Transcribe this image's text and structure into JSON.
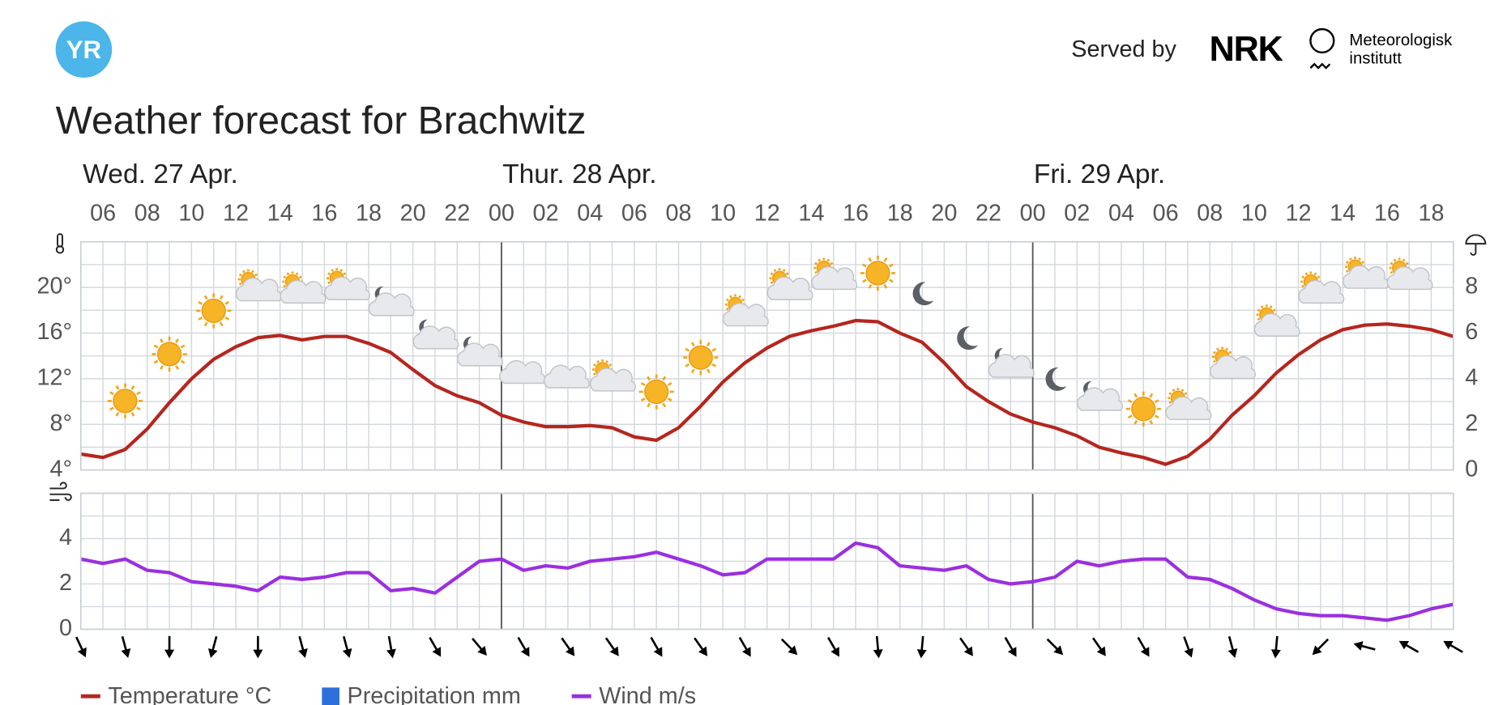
{
  "header": {
    "logo": "YR",
    "served_by": "Served by",
    "nrk": "NRK",
    "met_line1": "Meteorologisk",
    "met_line2": "institutt"
  },
  "chart_data": {
    "type": "line",
    "title": "Weather forecast for Brachwitz",
    "days": [
      "Wed. 27 Apr.",
      "Thur. 28 Apr.",
      "Fri. 29 Apr."
    ],
    "categories": [
      null,
      "06",
      null,
      "08",
      null,
      "10",
      null,
      "12",
      null,
      "14",
      null,
      "16",
      null,
      "18",
      null,
      "20",
      null,
      "22",
      null,
      "00",
      null,
      "02",
      null,
      "04",
      null,
      "06",
      null,
      "08",
      null,
      "10",
      null,
      "12",
      null,
      "14",
      null,
      "16",
      null,
      "18",
      null,
      "20",
      null,
      "22",
      null,
      "00",
      null,
      "02",
      null,
      "04",
      null,
      "06",
      null,
      "08",
      null,
      "10",
      null,
      "12",
      null,
      "14",
      null,
      "16",
      null,
      "18",
      null
    ],
    "ylim": [
      4,
      24
    ],
    "yticks": [
      {
        "value": 4,
        "label": "4°"
      },
      {
        "value": 8,
        "label": "8°"
      },
      {
        "value": 12,
        "label": "12°"
      },
      {
        "value": 16,
        "label": "16°"
      },
      {
        "value": 20,
        "label": "20°"
      }
    ],
    "ygrid": [
      4,
      6,
      8,
      10,
      12,
      14,
      16,
      18,
      20,
      22,
      24
    ],
    "y2lim": [
      0,
      10
    ],
    "y2ticks": [
      0,
      2,
      4,
      6,
      8
    ],
    "wind_ylim": [
      0,
      6
    ],
    "wind_yticks": [
      0,
      2,
      4
    ],
    "wind_ygrid": [
      0,
      1,
      2,
      3,
      4,
      5,
      6
    ],
    "series": [
      {
        "name": "Temperature °C",
        "color": "#b5261e",
        "axis": "y",
        "values": [
          5.4,
          5.1,
          5.8,
          7.6,
          9.9,
          12.0,
          13.7,
          14.8,
          15.6,
          15.8,
          15.4,
          15.7,
          15.7,
          15.1,
          14.3,
          12.8,
          11.4,
          10.5,
          9.9,
          8.8,
          8.2,
          7.8,
          7.8,
          7.9,
          7.7,
          6.9,
          6.6,
          7.7,
          9.6,
          11.7,
          13.4,
          14.7,
          15.7,
          16.2,
          16.6,
          17.1,
          17.0,
          16.0,
          15.2,
          13.4,
          11.3,
          10.0,
          8.9,
          8.2,
          7.7,
          7.0,
          6.0,
          5.5,
          5.1,
          4.5,
          5.2,
          6.7,
          8.8,
          10.5,
          12.5,
          14.1,
          15.4,
          16.3,
          16.7,
          16.8,
          16.6,
          16.3,
          15.7
        ]
      },
      {
        "name": "Precipitation mm",
        "color": "#2d6fdb",
        "axis": "y2",
        "values": [
          0,
          0,
          0,
          0,
          0,
          0,
          0,
          0,
          0,
          0,
          0,
          0,
          0,
          0,
          0,
          0,
          0,
          0,
          0,
          0,
          0,
          0,
          0,
          0,
          0,
          0,
          0,
          0,
          0,
          0,
          0,
          0,
          0,
          0,
          0,
          0,
          0,
          0,
          0,
          0,
          0,
          0,
          0,
          0,
          0,
          0,
          0,
          0,
          0,
          0,
          0,
          0,
          0,
          0,
          0,
          0,
          0,
          0,
          0,
          0,
          0,
          0,
          0
        ]
      },
      {
        "name": "Wind m/s",
        "color": "#9b2fe0",
        "axis": "wind",
        "values": [
          3.1,
          2.9,
          3.1,
          2.6,
          2.5,
          2.1,
          2.0,
          1.9,
          1.7,
          2.3,
          2.2,
          2.3,
          2.5,
          2.5,
          1.7,
          1.8,
          1.6,
          2.3,
          3.0,
          3.1,
          2.6,
          2.8,
          2.7,
          3.0,
          3.1,
          3.2,
          3.4,
          3.1,
          2.8,
          2.4,
          2.5,
          3.1,
          3.1,
          3.1,
          3.1,
          3.8,
          3.6,
          2.8,
          2.7,
          2.6,
          2.8,
          2.2,
          2.0,
          2.1,
          2.3,
          3.0,
          2.8,
          3.0,
          3.1,
          3.1,
          2.3,
          2.2,
          1.8,
          1.3,
          0.9,
          0.7,
          0.6,
          0.6,
          0.5,
          0.4,
          0.6,
          0.9,
          1.1
        ]
      }
    ],
    "wind_direction": [
      155,
      165,
      180,
      195,
      180,
      165,
      165,
      170,
      150,
      140,
      150,
      145,
      145,
      150,
      145,
      150,
      135,
      150,
      175,
      185,
      145,
      150,
      135,
      145,
      150,
      160,
      165,
      185,
      225,
      285,
      300,
      300
    ]
  }
}
